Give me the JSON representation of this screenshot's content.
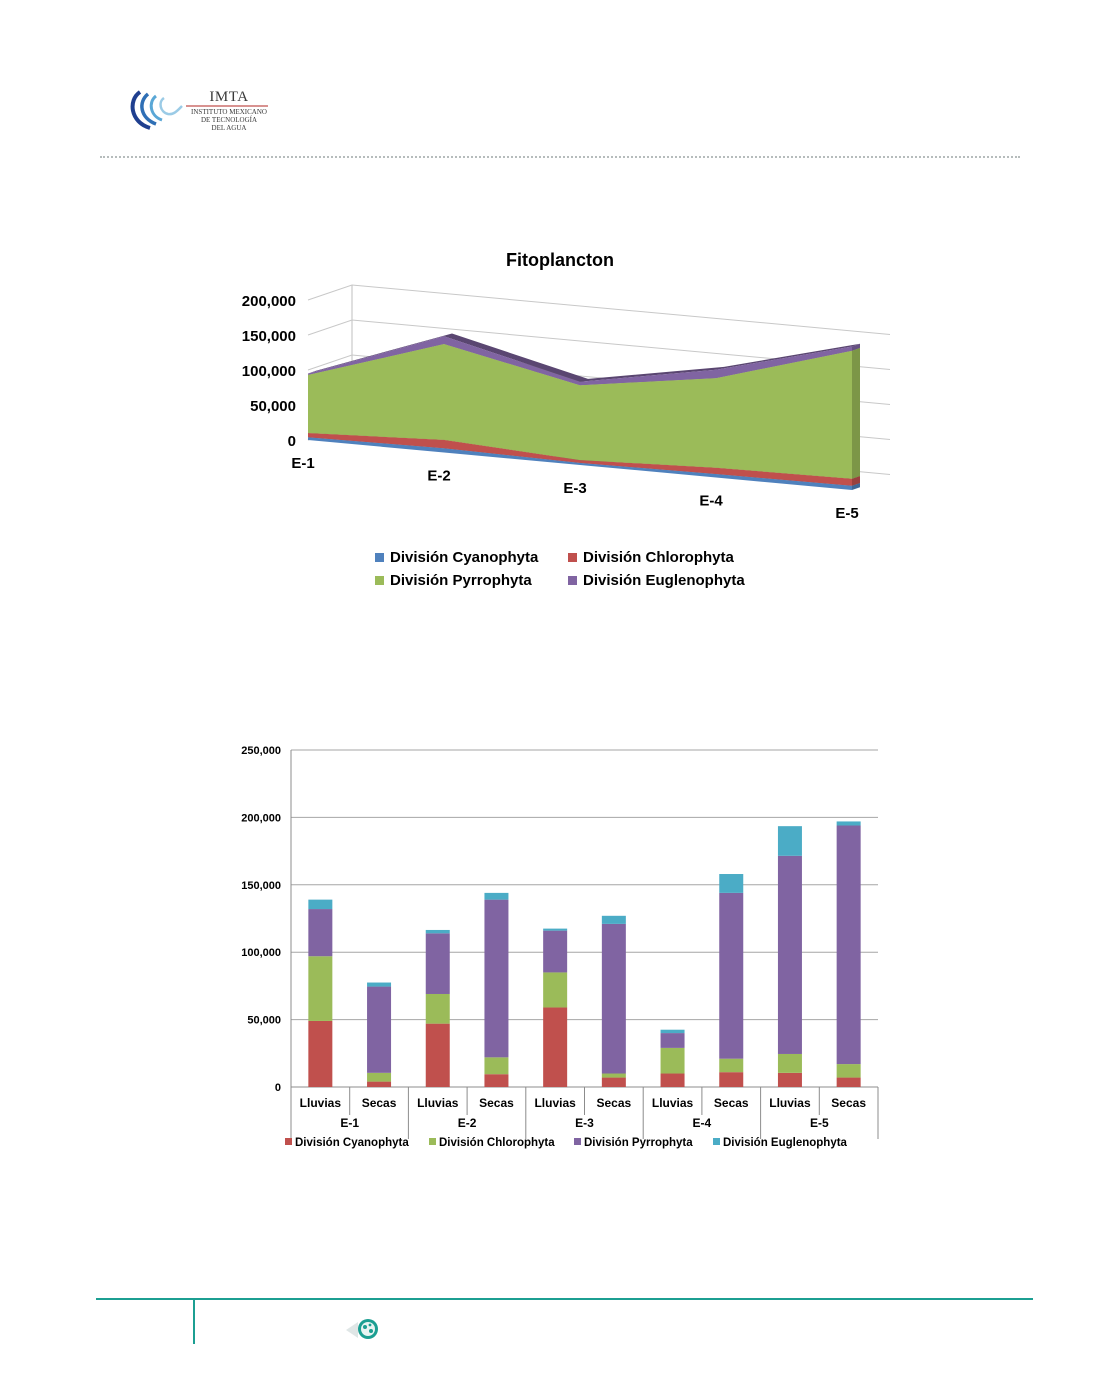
{
  "header": {
    "logo_name": "IMTA",
    "logo_line1": "INSTITUTO MEXICANO",
    "logo_line2": "DE TECNOLOGÍA",
    "logo_line3": "DEL AGUA"
  },
  "colors": {
    "cyanophyta_3d": "#4f81bd",
    "chlorophyta_3d": "#c0504d",
    "pyrrophyta_3d": "#9bbb59",
    "euglenophyta_3d": "#8064a2",
    "cyanophyta_bar": "#c0504d",
    "chlorophyta_bar": "#9bbb59",
    "pyrrophyta_bar": "#8064a2",
    "euglenophyta_bar": "#4bacc6",
    "footer_accent": "#1c9f92"
  },
  "chart_data": [
    {
      "type": "area",
      "title": "Fitoplancton",
      "categories": [
        "E-1",
        "E-2",
        "E-3",
        "E-4",
        "E-5"
      ],
      "y_ticks": [
        "200,000",
        "150,000",
        "100,000",
        "50,000",
        "0"
      ],
      "ylim": [
        0,
        200000
      ],
      "legend_placement": "bottom",
      "series": [
        {
          "name": "División Cyanophyta",
          "color": "#4f81bd",
          "values": [
            4000,
            6000,
            3000,
            5000,
            6000
          ]
        },
        {
          "name": "División Chlorophyta",
          "color": "#c0504d",
          "values": [
            6000,
            12000,
            4000,
            9000,
            10000
          ]
        },
        {
          "name": "División Pyrrophyta",
          "color": "#9bbb59",
          "values": [
            83000,
            137000,
            107000,
            128000,
            183000
          ]
        },
        {
          "name": "División Euglenophyta",
          "color": "#8064a2",
          "values": [
            2000,
            11000,
            5000,
            12000,
            6000
          ]
        }
      ]
    },
    {
      "type": "bar",
      "stacked": true,
      "y_ticks": [
        "250,000",
        "200,000",
        "150,000",
        "100,000",
        "50,000",
        "0"
      ],
      "ylim": [
        0,
        250000
      ],
      "grid": true,
      "legend_placement": "bottom",
      "categories": [
        "Lluvias",
        "Secas",
        "Lluvias",
        "Secas",
        "Lluvias",
        "Secas",
        "Lluvias",
        "Secas",
        "Lluvias",
        "Secas"
      ],
      "groups": [
        "E-1",
        "E-2",
        "E-3",
        "E-4",
        "E-5"
      ],
      "series": [
        {
          "name": "División Cyanophyta",
          "color": "#c0504d",
          "values": [
            49000,
            4000,
            47000,
            9500,
            59000,
            7000,
            10000,
            11000,
            10500,
            7000
          ]
        },
        {
          "name": "División Chlorophyta",
          "color": "#9bbb59",
          "values": [
            48000,
            6500,
            22000,
            12500,
            26000,
            3000,
            19000,
            10000,
            14000,
            10000
          ]
        },
        {
          "name": "División Pyrrophyta",
          "color": "#8064a2",
          "values": [
            35000,
            64000,
            45000,
            117000,
            31000,
            111000,
            11000,
            123000,
            147000,
            177000
          ]
        },
        {
          "name": "División Euglenophyta",
          "color": "#4bacc6",
          "values": [
            7000,
            3000,
            2500,
            5000,
            1500,
            6000,
            2500,
            14000,
            22000,
            3000
          ]
        }
      ]
    }
  ]
}
